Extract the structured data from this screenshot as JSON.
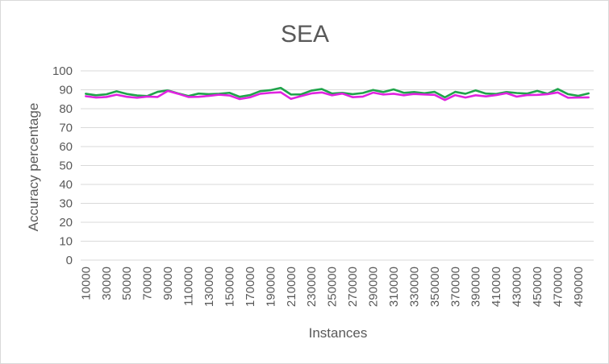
{
  "chart_data": {
    "type": "line",
    "title": "SEA",
    "xlabel": "Instances",
    "ylabel": "Accuracy percentage",
    "ylim": [
      0,
      100
    ],
    "yticks": [
      0,
      10,
      20,
      30,
      40,
      50,
      60,
      70,
      80,
      90,
      100
    ],
    "x": [
      10000,
      20000,
      30000,
      40000,
      50000,
      60000,
      70000,
      80000,
      90000,
      100000,
      110000,
      120000,
      130000,
      140000,
      150000,
      160000,
      170000,
      180000,
      190000,
      200000,
      210000,
      220000,
      230000,
      240000,
      250000,
      260000,
      270000,
      280000,
      290000,
      300000,
      310000,
      320000,
      330000,
      340000,
      350000,
      360000,
      370000,
      380000,
      390000,
      400000,
      410000,
      420000,
      430000,
      440000,
      450000,
      460000,
      470000,
      480000,
      490000,
      500000
    ],
    "xtick_labels": [
      "10000",
      "30000",
      "50000",
      "70000",
      "90000",
      "110000",
      "130000",
      "150000",
      "170000",
      "190000",
      "210000",
      "230000",
      "250000",
      "270000",
      "290000",
      "310000",
      "330000",
      "350000",
      "370000",
      "390000",
      "410000",
      "430000",
      "450000",
      "470000",
      "490000"
    ],
    "grid": true,
    "series": [
      {
        "color": "#1fa34a",
        "values": [
          87.9,
          87.1,
          87.6,
          89.2,
          87.8,
          87.0,
          86.7,
          88.9,
          89.7,
          88.1,
          86.7,
          88.0,
          87.7,
          87.9,
          88.4,
          86.3,
          87.2,
          89.3,
          89.8,
          91.0,
          87.5,
          87.6,
          89.6,
          90.4,
          88.0,
          88.4,
          87.7,
          88.3,
          89.9,
          88.8,
          90.2,
          88.4,
          88.8,
          88.2,
          88.9,
          86.0,
          88.9,
          87.9,
          89.7,
          88.0,
          87.8,
          88.8,
          88.3,
          88.0,
          89.4,
          87.9,
          90.4,
          87.7,
          86.8,
          88.1
        ]
      },
      {
        "color": "#e023e0",
        "values": [
          86.6,
          85.9,
          86.2,
          87.4,
          86.3,
          85.8,
          86.4,
          86.2,
          89.4,
          87.9,
          86.2,
          86.3,
          86.8,
          87.4,
          87.0,
          85.1,
          86.0,
          87.9,
          88.4,
          88.7,
          85.2,
          86.7,
          88.1,
          88.6,
          87.1,
          88.0,
          86.1,
          86.4,
          88.5,
          87.5,
          87.9,
          87.1,
          87.8,
          87.5,
          87.3,
          84.6,
          87.2,
          85.9,
          87.1,
          86.5,
          87.2,
          88.2,
          86.4,
          87.2,
          87.3,
          87.7,
          88.6,
          85.8,
          85.9,
          86.0
        ]
      }
    ]
  }
}
